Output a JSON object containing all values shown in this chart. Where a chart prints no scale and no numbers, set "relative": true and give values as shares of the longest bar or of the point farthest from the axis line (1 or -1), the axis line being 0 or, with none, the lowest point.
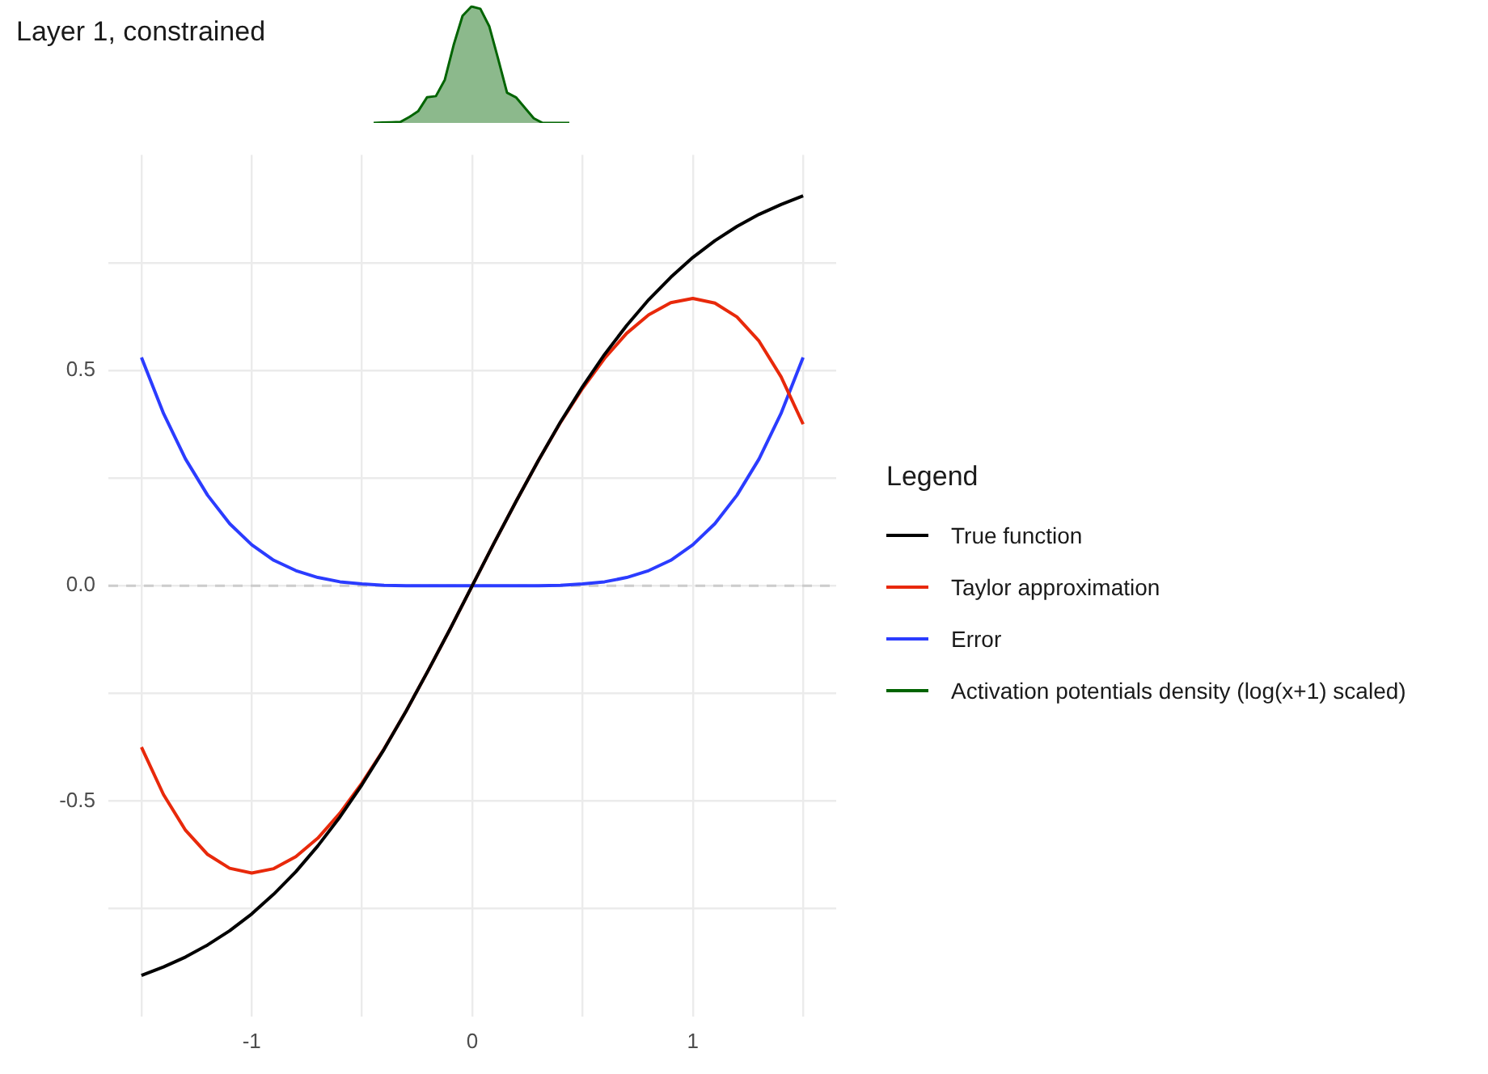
{
  "chart_data": [
    {
      "type": "area",
      "relative": true,
      "categories": [
        null,
        null,
        null,
        null,
        null,
        null,
        null,
        null,
        null,
        null,
        null,
        null,
        null,
        null,
        null,
        null,
        null,
        null,
        null,
        null,
        null,
        null,
        null
      ],
      "series": [
        {
          "name": "Activation potentials density (log(x+1) scaled)",
          "color": "#006400",
          "values": [
            0,
            0.003,
            0.005,
            0.008,
            0.05,
            0.1,
            0.22,
            0.23,
            0.37,
            0.67,
            0.92,
            1,
            0.98,
            0.83,
            0.55,
            0.26,
            0.22,
            0.13,
            0.04,
            0,
            0,
            0,
            0
          ]
        }
      ]
    },
    {
      "type": "line",
      "title": "Layer 1, constrained",
      "legend": "right",
      "legend_title": "Legend",
      "grid": true,
      "xlim": [
        -1.65,
        1.65
      ],
      "ylim": [
        -1,
        1
      ],
      "xticks": [
        {
          "value": -1.5,
          "label": null
        },
        -1,
        {
          "value": -0.5,
          "label": null
        },
        0,
        {
          "value": 0.5,
          "label": null
        },
        1,
        {
          "value": 1.5,
          "label": null
        }
      ],
      "yticks": [
        {
          "value": -0.75,
          "label": null
        },
        -0.5,
        {
          "value": -0.25,
          "label": null
        },
        {
          "value": 0,
          "label": "0.0"
        },
        {
          "value": 0.25,
          "label": null
        },
        0.5,
        {
          "value": 0.75,
          "label": null
        }
      ],
      "ref_lines": [
        {
          "axis": "y",
          "value": 0,
          "color": "#cccccc",
          "line_style": "dashed"
        }
      ],
      "x": [
        -1.5,
        -1.4,
        -1.3,
        -1.2,
        -1.1,
        -1,
        -0.9,
        -0.8,
        -0.7,
        -0.6,
        -0.5,
        -0.4,
        -0.3,
        -0.2,
        -0.1,
        0,
        0.1,
        0.2,
        0.3,
        0.4,
        0.5,
        0.6,
        0.7,
        0.8,
        0.9,
        1,
        1.1,
        1.2,
        1.3,
        1.4,
        1.5
      ],
      "series": [
        {
          "name": "True function",
          "color": "#000000",
          "values": [
            -0.905,
            -0.885,
            -0.862,
            -0.834,
            -0.801,
            -0.762,
            -0.716,
            -0.664,
            -0.604,
            -0.537,
            -0.462,
            -0.38,
            -0.291,
            -0.197,
            -0.1,
            0,
            0.1,
            0.197,
            0.291,
            0.38,
            0.462,
            0.537,
            0.604,
            0.664,
            0.716,
            0.762,
            0.801,
            0.834,
            0.862,
            0.885,
            0.905
          ]
        },
        {
          "name": "Taylor approximation",
          "color": "#e8290b",
          "values": [
            -0.375,
            -0.485,
            -0.568,
            -0.624,
            -0.656,
            -0.667,
            -0.657,
            -0.629,
            -0.586,
            -0.528,
            -0.458,
            -0.379,
            -0.291,
            -0.197,
            -0.1,
            0,
            0.1,
            0.197,
            0.291,
            0.379,
            0.458,
            0.528,
            0.586,
            0.629,
            0.657,
            0.667,
            0.656,
            0.624,
            0.568,
            0.485,
            0.375
          ]
        },
        {
          "name": "Error",
          "color": "#2b3cff",
          "values": [
            0.53,
            0.4,
            0.294,
            0.21,
            0.144,
            0.095,
            0.059,
            0.035,
            0.019,
            0.009,
            0.004,
            0.001,
            0,
            0,
            0,
            0,
            0,
            0,
            0,
            0.001,
            0.004,
            0.009,
            0.019,
            0.035,
            0.059,
            0.095,
            0.144,
            0.21,
            0.294,
            0.4,
            0.53
          ]
        }
      ]
    }
  ]
}
